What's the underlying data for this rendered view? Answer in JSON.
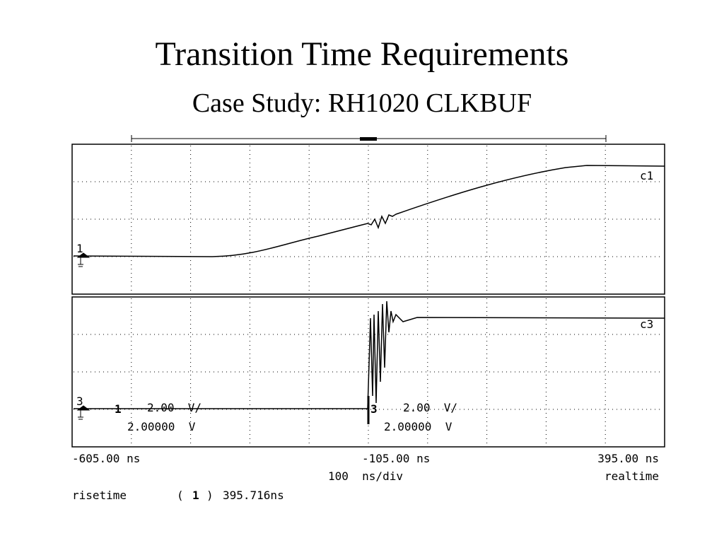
{
  "slide": {
    "title": "Transition Time Requirements",
    "subtitle": "Case Study: RH1020 CLKBUF"
  },
  "scope": {
    "channel1": {
      "ground": "1",
      "label": "c1"
    },
    "channel3": {
      "ground": "3",
      "label": "c3"
    },
    "settings": [
      {
        "channel": "1",
        "scale": "2.00  V/",
        "offset": "2.00000  V"
      },
      {
        "channel": "3",
        "scale": "2.00  V/",
        "offset": "2.00000  V"
      }
    ],
    "time": {
      "start": "-605.00 ns",
      "center": "-105.00 ns",
      "end": "395.00 ns",
      "scale": "100  ns/div",
      "mode": "realtime"
    },
    "measurement": {
      "name": "risetime",
      "open": "(",
      "source": "1",
      "close": ")",
      "value": "395.716ns"
    }
  }
}
